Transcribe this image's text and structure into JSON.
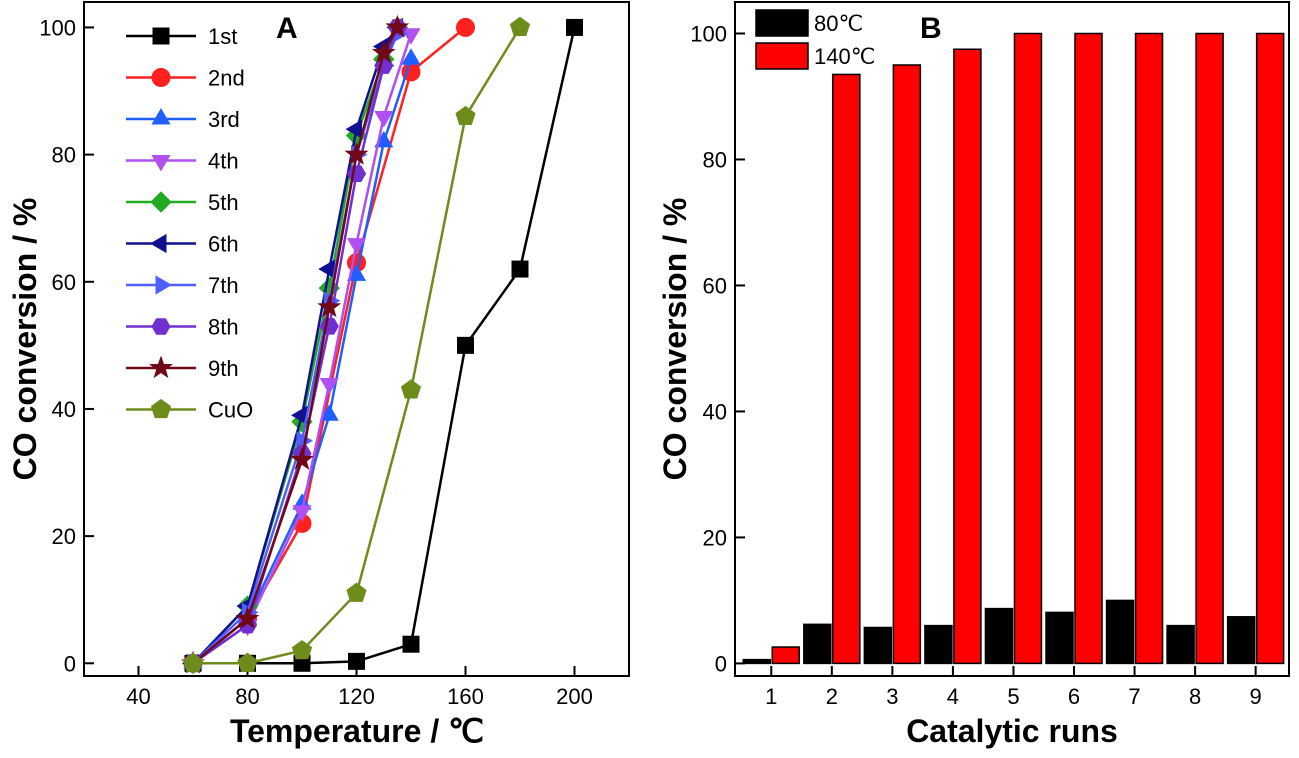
{
  "chart_data": [
    {
      "type": "line",
      "panel": "A",
      "xlabel": "Temperature / ℃",
      "ylabel": "CO conversion / %",
      "xlim": [
        20,
        220
      ],
      "ylim": [
        -2,
        104
      ],
      "xticks": [
        40,
        80,
        120,
        160,
        200
      ],
      "yticks": [
        0,
        20,
        40,
        60,
        80,
        100
      ],
      "legend_position": "top-left",
      "grid": false,
      "series": [
        {
          "name": "1st",
          "color": "#000000",
          "marker": "square",
          "x": [
            60,
            80,
            100,
            120,
            140,
            160,
            180,
            200
          ],
          "y": [
            0,
            0,
            0,
            0.3,
            3,
            50,
            62,
            100
          ]
        },
        {
          "name": "2nd",
          "color": "#ff2020",
          "marker": "circle",
          "x": [
            60,
            80,
            100,
            120,
            140,
            160
          ],
          "y": [
            0,
            7,
            22,
            63,
            93,
            100
          ]
        },
        {
          "name": "3rd",
          "color": "#1f5fff",
          "marker": "triangle-up",
          "x": [
            60,
            80,
            100,
            110,
            120,
            130,
            140
          ],
          "y": [
            0,
            7,
            25,
            39,
            61,
            82,
            95
          ]
        },
        {
          "name": "4th",
          "color": "#b050f0",
          "marker": "triangle-down",
          "x": [
            60,
            80,
            100,
            110,
            120,
            130,
            140
          ],
          "y": [
            0,
            6,
            24,
            44,
            66,
            86,
            99
          ]
        },
        {
          "name": "5th",
          "color": "#22aa22",
          "marker": "diamond",
          "x": [
            60,
            80,
            100,
            110,
            120,
            130,
            135
          ],
          "y": [
            0,
            9,
            38,
            59,
            83,
            95,
            100
          ]
        },
        {
          "name": "6th",
          "color": "#101090",
          "marker": "triangle-left",
          "x": [
            60,
            80,
            100,
            110,
            120,
            130,
            135
          ],
          "y": [
            0,
            9,
            39,
            62,
            84,
            97,
            100
          ]
        },
        {
          "name": "7th",
          "color": "#5060ff",
          "marker": "triangle-right",
          "x": [
            60,
            80,
            100,
            110,
            120,
            130,
            135
          ],
          "y": [
            0,
            8,
            35,
            57,
            80,
            94,
            99
          ]
        },
        {
          "name": "8th",
          "color": "#7030d0",
          "marker": "hexagon",
          "x": [
            60,
            80,
            100,
            110,
            120,
            130,
            135
          ],
          "y": [
            0,
            6,
            33,
            53,
            77,
            94,
            100
          ]
        },
        {
          "name": "9th",
          "color": "#700818",
          "marker": "star",
          "x": [
            60,
            80,
            100,
            110,
            120,
            130,
            135
          ],
          "y": [
            0,
            7,
            32,
            56,
            80,
            96,
            100
          ]
        },
        {
          "name": "CuO",
          "color": "#6e8c1c",
          "marker": "pentagon",
          "x": [
            60,
            80,
            100,
            120,
            140,
            160,
            180
          ],
          "y": [
            0,
            0,
            2,
            11,
            43,
            86,
            100
          ]
        }
      ]
    },
    {
      "type": "bar",
      "panel": "B",
      "xlabel": "Catalytic runs",
      "ylabel": "CO conversion / %",
      "ylim": [
        -2,
        105
      ],
      "yticks": [
        0,
        20,
        40,
        60,
        80,
        100
      ],
      "categories": [
        "1",
        "2",
        "3",
        "4",
        "5",
        "6",
        "7",
        "8",
        "9"
      ],
      "legend_position": "top-left",
      "grid": false,
      "series": [
        {
          "name": "80℃",
          "color": "#000000",
          "values": [
            0.6,
            6.2,
            5.7,
            6.0,
            8.7,
            8.1,
            10.0,
            6.0,
            7.4
          ]
        },
        {
          "name": "140℃",
          "color": "#ff0000",
          "values": [
            2.6,
            93.5,
            95.0,
            97.5,
            100,
            100,
            100,
            100,
            100
          ]
        }
      ]
    }
  ]
}
